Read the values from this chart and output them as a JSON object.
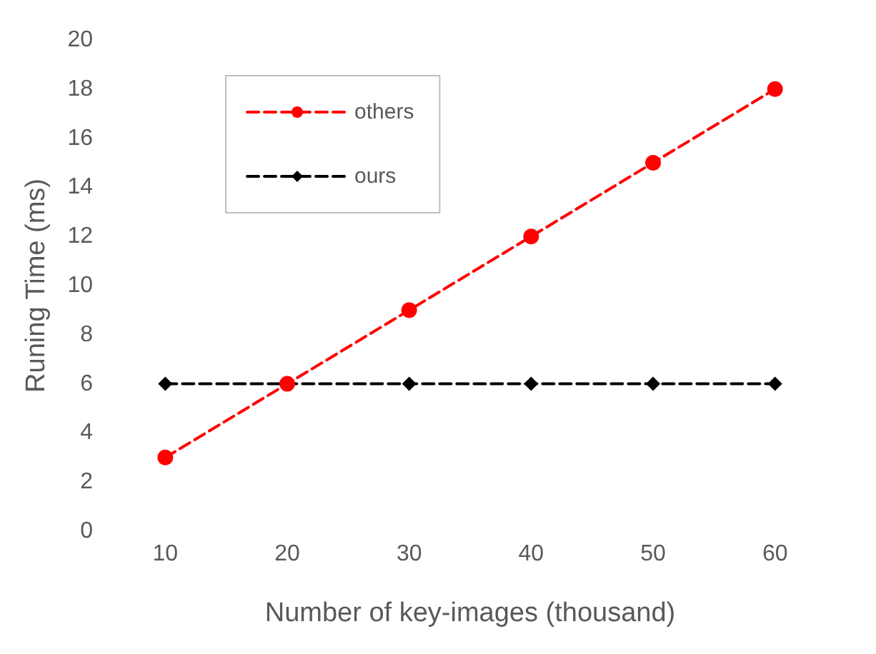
{
  "chart_data": {
    "type": "line",
    "xlabel": "Number of key-images (thousand)",
    "ylabel": "Runing Time (ms)",
    "categories": [
      "10",
      "20",
      "30",
      "40",
      "50",
      "60"
    ],
    "series": [
      {
        "name": "others",
        "color": "#ff0000",
        "marker": "circle",
        "values": [
          3,
          6,
          9,
          12,
          15,
          18
        ]
      },
      {
        "name": "ours",
        "color": "#000000",
        "marker": "diamond",
        "values": [
          6,
          6,
          6,
          6,
          6,
          6
        ]
      }
    ],
    "ylim": [
      0,
      20
    ],
    "yticks": [
      0,
      2,
      4,
      6,
      8,
      10,
      12,
      14,
      16,
      18,
      20
    ],
    "grid": false,
    "legend": "top left",
    "line_style": "dashed"
  }
}
